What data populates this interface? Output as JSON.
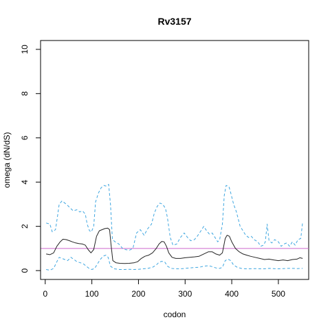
{
  "chart_data": {
    "type": "line",
    "title": "Rv3157",
    "xlabel": "codon",
    "ylabel": "omega (dN/dS)",
    "xlim": [
      -10,
      565
    ],
    "ylim": [
      -0.4,
      10.4
    ],
    "x_ticks": [
      0,
      100,
      200,
      300,
      400,
      500
    ],
    "y_ticks": [
      0,
      2,
      4,
      6,
      8,
      10
    ],
    "grid": false,
    "reference_line": {
      "y": 1,
      "color": "#cc66cc"
    },
    "series": [
      {
        "style": "solid",
        "color": "#222222",
        "points": [
          [
            2,
            0.75
          ],
          [
            10,
            0.72
          ],
          [
            18,
            0.8
          ],
          [
            25,
            1.1
          ],
          [
            32,
            1.3
          ],
          [
            38,
            1.42
          ],
          [
            45,
            1.4
          ],
          [
            52,
            1.35
          ],
          [
            58,
            1.3
          ],
          [
            65,
            1.25
          ],
          [
            72,
            1.22
          ],
          [
            80,
            1.2
          ],
          [
            86,
            1.15
          ],
          [
            92,
            0.95
          ],
          [
            98,
            0.8
          ],
          [
            104,
            0.95
          ],
          [
            110,
            1.55
          ],
          [
            116,
            1.8
          ],
          [
            122,
            1.85
          ],
          [
            128,
            1.9
          ],
          [
            134,
            1.92
          ],
          [
            138,
            1.85
          ],
          [
            141,
            1.2
          ],
          [
            145,
            0.45
          ],
          [
            152,
            0.35
          ],
          [
            160,
            0.33
          ],
          [
            170,
            0.32
          ],
          [
            180,
            0.33
          ],
          [
            190,
            0.35
          ],
          [
            198,
            0.4
          ],
          [
            206,
            0.55
          ],
          [
            214,
            0.65
          ],
          [
            222,
            0.7
          ],
          [
            230,
            0.8
          ],
          [
            238,
            1.0
          ],
          [
            244,
            1.2
          ],
          [
            250,
            1.32
          ],
          [
            255,
            1.3
          ],
          [
            260,
            1.1
          ],
          [
            265,
            0.8
          ],
          [
            272,
            0.6
          ],
          [
            280,
            0.55
          ],
          [
            290,
            0.55
          ],
          [
            300,
            0.58
          ],
          [
            310,
            0.6
          ],
          [
            320,
            0.62
          ],
          [
            330,
            0.65
          ],
          [
            340,
            0.75
          ],
          [
            350,
            0.85
          ],
          [
            358,
            0.85
          ],
          [
            366,
            0.75
          ],
          [
            374,
            0.7
          ],
          [
            380,
            0.8
          ],
          [
            386,
            1.45
          ],
          [
            390,
            1.6
          ],
          [
            395,
            1.55
          ],
          [
            400,
            1.3
          ],
          [
            408,
            1.0
          ],
          [
            416,
            0.85
          ],
          [
            424,
            0.75
          ],
          [
            432,
            0.7
          ],
          [
            440,
            0.65
          ],
          [
            450,
            0.6
          ],
          [
            460,
            0.55
          ],
          [
            470,
            0.5
          ],
          [
            480,
            0.52
          ],
          [
            490,
            0.48
          ],
          [
            500,
            0.45
          ],
          [
            510,
            0.48
          ],
          [
            520,
            0.45
          ],
          [
            530,
            0.5
          ],
          [
            540,
            0.52
          ],
          [
            546,
            0.58
          ],
          [
            552,
            0.55
          ]
        ]
      },
      {
        "style": "dashed",
        "color": "#3ea6e0",
        "points": [
          [
            2,
            2.15
          ],
          [
            10,
            2.1
          ],
          [
            15,
            1.75
          ],
          [
            22,
            1.85
          ],
          [
            26,
            2.4
          ],
          [
            30,
            3.0
          ],
          [
            36,
            3.15
          ],
          [
            42,
            3.05
          ],
          [
            48,
            2.95
          ],
          [
            55,
            2.8
          ],
          [
            60,
            2.7
          ],
          [
            68,
            2.75
          ],
          [
            74,
            2.65
          ],
          [
            80,
            2.7
          ],
          [
            86,
            2.55
          ],
          [
            90,
            2.1
          ],
          [
            95,
            1.8
          ],
          [
            99,
            1.75
          ],
          [
            104,
            2.0
          ],
          [
            108,
            3.1
          ],
          [
            114,
            3.5
          ],
          [
            120,
            3.75
          ],
          [
            126,
            3.85
          ],
          [
            130,
            3.82
          ],
          [
            136,
            3.9
          ],
          [
            140,
            3.0
          ],
          [
            144,
            1.4
          ],
          [
            150,
            1.3
          ],
          [
            158,
            1.2
          ],
          [
            166,
            1.0
          ],
          [
            172,
            0.95
          ],
          [
            180,
            0.92
          ],
          [
            188,
            1.0
          ],
          [
            196,
            1.7
          ],
          [
            204,
            1.85
          ],
          [
            212,
            1.6
          ],
          [
            220,
            1.9
          ],
          [
            228,
            2.1
          ],
          [
            234,
            2.6
          ],
          [
            240,
            2.9
          ],
          [
            246,
            3.05
          ],
          [
            252,
            3.0
          ],
          [
            258,
            2.8
          ],
          [
            262,
            2.4
          ],
          [
            268,
            1.5
          ],
          [
            274,
            1.15
          ],
          [
            282,
            1.2
          ],
          [
            290,
            1.5
          ],
          [
            298,
            1.7
          ],
          [
            305,
            1.5
          ],
          [
            312,
            1.35
          ],
          [
            320,
            1.4
          ],
          [
            326,
            1.55
          ],
          [
            334,
            1.8
          ],
          [
            340,
            2.0
          ],
          [
            346,
            1.8
          ],
          [
            352,
            1.65
          ],
          [
            358,
            1.7
          ],
          [
            364,
            1.5
          ],
          [
            370,
            1.3
          ],
          [
            374,
            1.4
          ],
          [
            380,
            2.1
          ],
          [
            384,
            3.4
          ],
          [
            388,
            3.85
          ],
          [
            394,
            3.8
          ],
          [
            398,
            3.5
          ],
          [
            404,
            3.0
          ],
          [
            410,
            2.65
          ],
          [
            418,
            2.0
          ],
          [
            424,
            1.8
          ],
          [
            430,
            1.6
          ],
          [
            436,
            1.5
          ],
          [
            442,
            1.55
          ],
          [
            448,
            1.4
          ],
          [
            456,
            1.3
          ],
          [
            462,
            1.1
          ],
          [
            468,
            1.15
          ],
          [
            472,
            1.3
          ],
          [
            476,
            2.1
          ],
          [
            480,
            1.35
          ],
          [
            486,
            1.25
          ],
          [
            492,
            1.4
          ],
          [
            500,
            1.3
          ],
          [
            506,
            1.1
          ],
          [
            512,
            1.2
          ],
          [
            518,
            1.25
          ],
          [
            524,
            1.1
          ],
          [
            530,
            1.3
          ],
          [
            536,
            1.15
          ],
          [
            542,
            1.4
          ],
          [
            548,
            1.45
          ],
          [
            552,
            2.2
          ]
        ]
      },
      {
        "style": "dashed",
        "color": "#3ea6e0",
        "points": [
          [
            2,
            0.05
          ],
          [
            10,
            0.02
          ],
          [
            18,
            0.1
          ],
          [
            25,
            0.4
          ],
          [
            30,
            0.6
          ],
          [
            36,
            0.55
          ],
          [
            42,
            0.5
          ],
          [
            48,
            0.45
          ],
          [
            55,
            0.6
          ],
          [
            62,
            0.5
          ],
          [
            68,
            0.4
          ],
          [
            76,
            0.35
          ],
          [
            82,
            0.3
          ],
          [
            88,
            0.2
          ],
          [
            94,
            0.1
          ],
          [
            100,
            0.05
          ],
          [
            106,
            0.1
          ],
          [
            112,
            0.3
          ],
          [
            118,
            0.5
          ],
          [
            124,
            0.65
          ],
          [
            130,
            0.7
          ],
          [
            135,
            0.6
          ],
          [
            140,
            0.2
          ],
          [
            148,
            0.08
          ],
          [
            160,
            0.05
          ],
          [
            170,
            0.05
          ],
          [
            180,
            0.06
          ],
          [
            190,
            0.05
          ],
          [
            200,
            0.06
          ],
          [
            210,
            0.08
          ],
          [
            220,
            0.1
          ],
          [
            230,
            0.15
          ],
          [
            238,
            0.25
          ],
          [
            244,
            0.38
          ],
          [
            250,
            0.42
          ],
          [
            256,
            0.4
          ],
          [
            262,
            0.2
          ],
          [
            270,
            0.1
          ],
          [
            280,
            0.08
          ],
          [
            290,
            0.08
          ],
          [
            300,
            0.1
          ],
          [
            310,
            0.12
          ],
          [
            320,
            0.14
          ],
          [
            330,
            0.15
          ],
          [
            340,
            0.2
          ],
          [
            350,
            0.22
          ],
          [
            358,
            0.18
          ],
          [
            366,
            0.12
          ],
          [
            374,
            0.1
          ],
          [
            380,
            0.15
          ],
          [
            386,
            0.45
          ],
          [
            392,
            0.52
          ],
          [
            398,
            0.45
          ],
          [
            404,
            0.25
          ],
          [
            412,
            0.15
          ],
          [
            420,
            0.1
          ],
          [
            430,
            0.08
          ],
          [
            440,
            0.08
          ],
          [
            450,
            0.09
          ],
          [
            460,
            0.08
          ],
          [
            470,
            0.08
          ],
          [
            480,
            0.1
          ],
          [
            490,
            0.09
          ],
          [
            500,
            0.08
          ],
          [
            510,
            0.09
          ],
          [
            520,
            0.1
          ],
          [
            530,
            0.1
          ],
          [
            540,
            0.09
          ],
          [
            552,
            0.1
          ]
        ]
      }
    ]
  }
}
